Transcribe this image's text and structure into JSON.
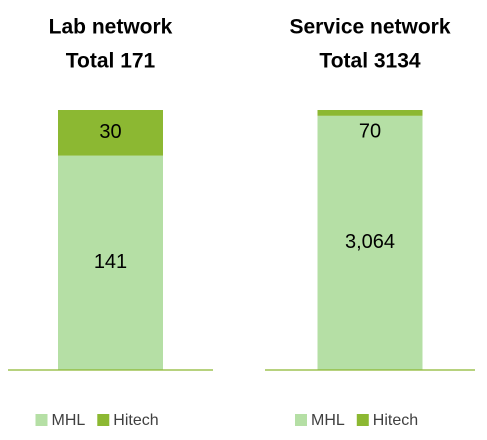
{
  "chart_data": [
    {
      "type": "bar",
      "stacking": "percent",
      "title": "Lab network",
      "subtitle": "Total 171",
      "categories": [
        null
      ],
      "series": [
        {
          "name": "MHL",
          "color": "#b5dfa5",
          "values": [
            141
          ]
        },
        {
          "name": "Hitech",
          "color": "#8cb832",
          "values": [
            30
          ]
        }
      ],
      "legend": "bottom"
    },
    {
      "type": "bar",
      "stacking": "percent",
      "title": "Service network",
      "subtitle": "Total 3134",
      "categories": [
        null
      ],
      "series": [
        {
          "name": "MHL",
          "color": "#b5dfa5",
          "values": [
            3064
          ],
          "value_labels": [
            "3,064"
          ]
        },
        {
          "name": "Hitech",
          "color": "#8cb832",
          "values": [
            70
          ]
        }
      ],
      "legend": "bottom"
    }
  ]
}
